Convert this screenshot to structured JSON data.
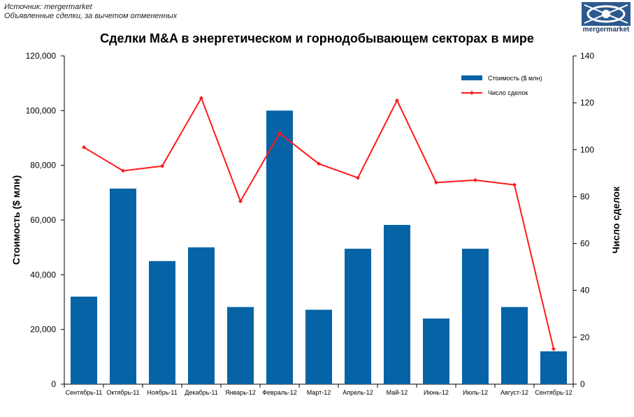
{
  "header": {
    "source_line1": "Источник: mergermarket",
    "source_line2": "Объявленные сделки, за вычетом отмененных",
    "logo_text": "mergermarket"
  },
  "chart_data": {
    "type": "bar",
    "title": "Сделки M&A в энергетическом и горнодобывающем секторах в мире",
    "xlabel": "",
    "ylabel": "Стоимость  ($ млн)",
    "y2label": "Число сделок",
    "categories": [
      "Сентябрь-11",
      "Октябрь-11",
      "Ноябрь-11",
      "Декабрь-11",
      "Январь-12",
      "Февраль-12",
      "Март-12",
      "Апрель-12",
      "Май-12",
      "Июнь-12",
      "Июль-12",
      "Август-12",
      "Сентябрь-12"
    ],
    "series": [
      {
        "name": "Стоимость ($ млн)",
        "type": "bar",
        "axis": "left",
        "color": "#0563a6",
        "values": [
          32000,
          71500,
          45000,
          50000,
          28200,
          100000,
          27200,
          49500,
          58200,
          24000,
          49500,
          28200,
          12000
        ]
      },
      {
        "name": "Число сделок",
        "type": "line",
        "axis": "right",
        "color": "#ff1a1a",
        "values": [
          101,
          91,
          93,
          122,
          78,
          107,
          94,
          88,
          121,
          86,
          87,
          85,
          15
        ]
      }
    ],
    "ylim": [
      0,
      120000
    ],
    "y2lim": [
      0,
      140
    ],
    "yticks": [
      "0",
      "20,000",
      "40,000",
      "60,000",
      "80,000",
      "100,000",
      "120,000"
    ],
    "y2ticks": [
      "0",
      "20",
      "40",
      "60",
      "80",
      "100",
      "120",
      "140"
    ],
    "grid": false,
    "legend_position": "top-right"
  }
}
